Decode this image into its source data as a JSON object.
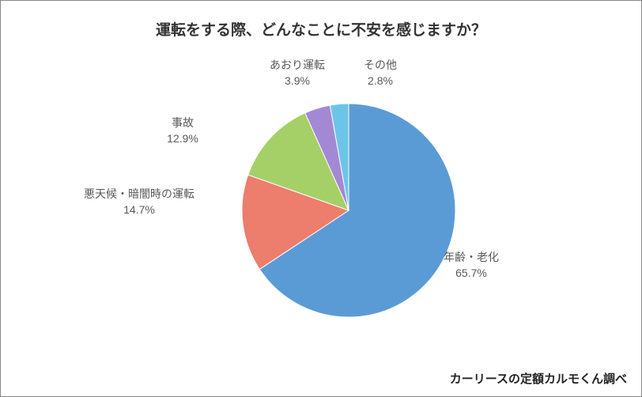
{
  "chart": {
    "type": "pie",
    "title": "運転をする際、どんなことに不安を感じますか？",
    "title_fontsize": 19,
    "background_color": "#ffffff",
    "credit": "カーリースの定額カルモくん調べ",
    "label_color": "#595959",
    "label_fontsize": 14,
    "stroke_color": "#ffffff",
    "stroke_width": 1,
    "radius": 135,
    "slices": [
      {
        "label": "年齢・老化",
        "value": 65.7,
        "pct": "65.7%",
        "color": "#5b9bd5"
      },
      {
        "label": "悪天候・暗闇時の運転",
        "value": 14.7,
        "pct": "14.7%",
        "color": "#ed7d6d"
      },
      {
        "label": "事故",
        "value": 12.9,
        "pct": "12.9%",
        "color": "#a5d067"
      },
      {
        "label": "あおり運転",
        "value": 3.9,
        "pct": "3.9%",
        "color": "#a389d4"
      },
      {
        "label": "その他",
        "value": 2.8,
        "pct": "2.8%",
        "color": "#6cc5e9"
      }
    ]
  }
}
